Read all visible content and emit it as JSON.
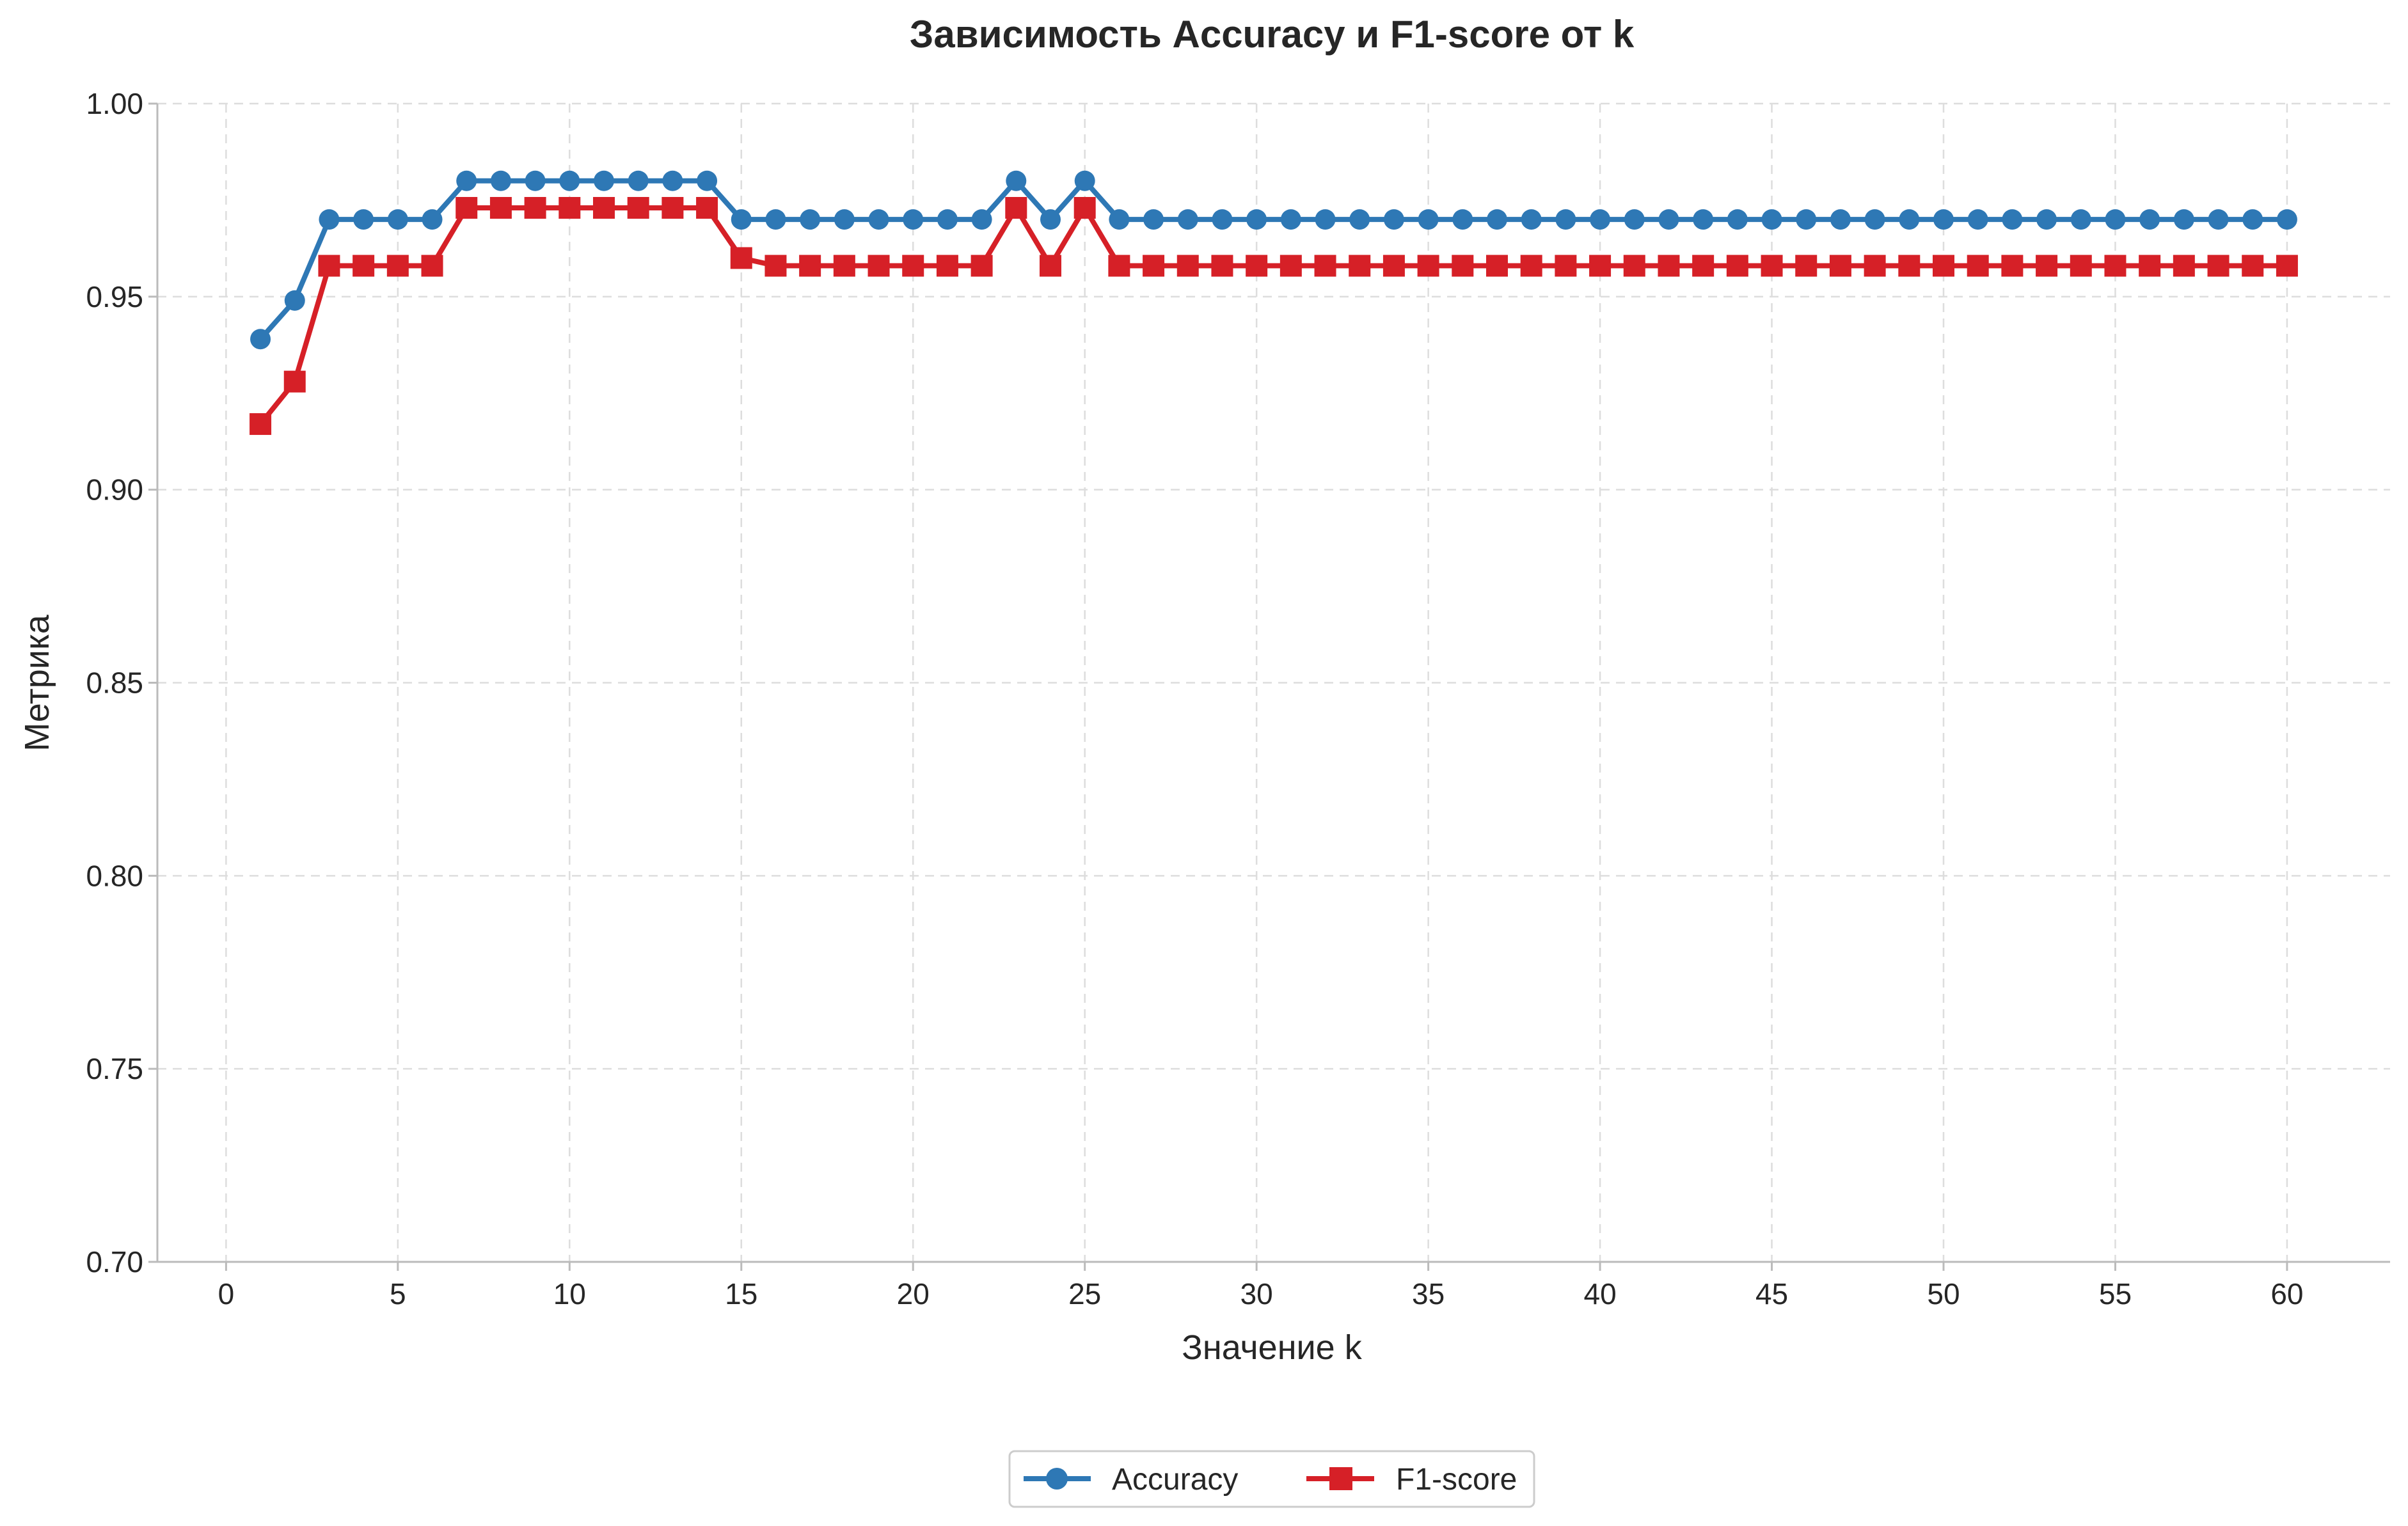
{
  "chart_data": {
    "type": "line",
    "title": "Зависимость Accuracy и F1-score от k",
    "xlabel": "Значение k",
    "ylabel": "Метрика",
    "xlim": [
      -2,
      63
    ],
    "ylim": [
      0.7,
      1.0
    ],
    "xticks": [
      0,
      5,
      10,
      15,
      20,
      25,
      30,
      35,
      40,
      45,
      50,
      55,
      60
    ],
    "yticks": [
      0.7,
      0.75,
      0.8,
      0.85,
      0.9,
      0.95,
      1.0
    ],
    "xtick_labels": [
      "0",
      "5",
      "10",
      "15",
      "20",
      "25",
      "30",
      "35",
      "40",
      "45",
      "50",
      "55",
      "60"
    ],
    "ytick_labels": [
      "0.70",
      "0.75",
      "0.80",
      "0.85",
      "0.90",
      "0.95",
      "1.00"
    ],
    "grid": true,
    "legend_position": "bottom-center",
    "x": [
      1,
      2,
      3,
      4,
      5,
      6,
      7,
      8,
      9,
      10,
      11,
      12,
      13,
      14,
      15,
      16,
      17,
      18,
      19,
      20,
      21,
      22,
      23,
      24,
      25,
      26,
      27,
      28,
      29,
      30,
      31,
      32,
      33,
      34,
      35,
      36,
      37,
      38,
      39,
      40,
      41,
      42,
      43,
      44,
      45,
      46,
      47,
      48,
      49,
      50,
      51,
      52,
      53,
      54,
      55,
      56,
      57,
      58,
      59,
      60
    ],
    "series": [
      {
        "name": "Accuracy",
        "color": "#2e78b5",
        "marker": "circle",
        "values": [
          0.939,
          0.949,
          0.97,
          0.97,
          0.97,
          0.97,
          0.98,
          0.98,
          0.98,
          0.98,
          0.98,
          0.98,
          0.98,
          0.98,
          0.97,
          0.97,
          0.97,
          0.97,
          0.97,
          0.97,
          0.97,
          0.97,
          0.98,
          0.97,
          0.98,
          0.97,
          0.97,
          0.97,
          0.97,
          0.97,
          0.97,
          0.97,
          0.97,
          0.97,
          0.97,
          0.97,
          0.97,
          0.97,
          0.97,
          0.97,
          0.97,
          0.97,
          0.97,
          0.97,
          0.97,
          0.97,
          0.97,
          0.97,
          0.97,
          0.97,
          0.97,
          0.97,
          0.97,
          0.97,
          0.97,
          0.97,
          0.97,
          0.97,
          0.97,
          0.97
        ]
      },
      {
        "name": "F1-score",
        "color": "#d62027",
        "marker": "square",
        "values": [
          0.917,
          0.928,
          0.958,
          0.958,
          0.958,
          0.958,
          0.973,
          0.973,
          0.973,
          0.973,
          0.973,
          0.973,
          0.973,
          0.973,
          0.96,
          0.958,
          0.958,
          0.958,
          0.958,
          0.958,
          0.958,
          0.958,
          0.973,
          0.958,
          0.973,
          0.958,
          0.958,
          0.958,
          0.958,
          0.958,
          0.958,
          0.958,
          0.958,
          0.958,
          0.958,
          0.958,
          0.958,
          0.958,
          0.958,
          0.958,
          0.958,
          0.958,
          0.958,
          0.958,
          0.958,
          0.958,
          0.958,
          0.958,
          0.958,
          0.958,
          0.958,
          0.958,
          0.958,
          0.958,
          0.958,
          0.958,
          0.958,
          0.958,
          0.958,
          0.958
        ]
      }
    ]
  }
}
